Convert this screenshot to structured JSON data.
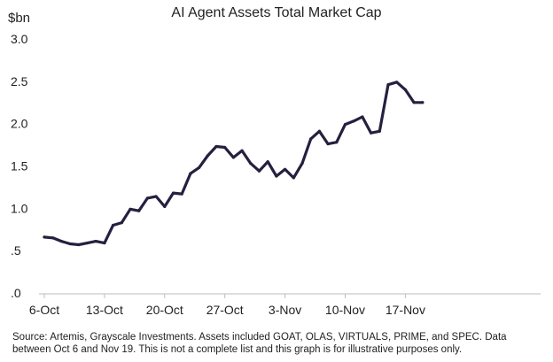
{
  "chart_data": {
    "type": "line",
    "title": "AI Agent Assets Total Market Cap",
    "ylabel": "$bn",
    "xlabel": "",
    "ylim": [
      0,
      3.0
    ],
    "yticks": [
      0,
      0.5,
      1.0,
      1.5,
      2.0,
      2.5,
      3.0
    ],
    "ytick_labels": [
      ".0",
      ".5",
      "1.0",
      "1.5",
      "2.0",
      "2.5",
      "3.0"
    ],
    "xtick_labels": [
      "6-Oct",
      "13-Oct",
      "20-Oct",
      "27-Oct",
      "3-Nov",
      "10-Nov",
      "17-Nov"
    ],
    "xtick_days": [
      0,
      7,
      14,
      21,
      28,
      35,
      42
    ],
    "grid": false,
    "line_color": "#24203f",
    "series": [
      {
        "x": [
          0,
          1,
          2,
          3,
          4,
          5,
          6,
          7,
          8,
          9,
          10,
          11,
          12,
          13,
          14,
          15,
          16,
          17,
          18,
          19,
          20,
          21,
          22,
          23,
          24,
          25,
          26,
          27,
          28,
          29,
          30,
          31,
          32,
          33,
          34,
          35,
          36,
          37,
          38,
          39,
          40,
          41,
          42,
          43,
          44
        ],
        "values": [
          0.66,
          0.65,
          0.61,
          0.58,
          0.57,
          0.59,
          0.61,
          0.59,
          0.8,
          0.83,
          0.99,
          0.97,
          1.12,
          1.14,
          1.02,
          1.18,
          1.17,
          1.41,
          1.48,
          1.62,
          1.73,
          1.72,
          1.6,
          1.68,
          1.53,
          1.44,
          1.55,
          1.38,
          1.46,
          1.36,
          1.53,
          1.82,
          1.91,
          1.76,
          1.78,
          1.99,
          2.03,
          2.08,
          1.89,
          1.91,
          2.46,
          2.49,
          2.4,
          2.25,
          2.25
        ]
      }
    ]
  },
  "source_note": "Source: Artemis, Grayscale Investments. Assets included GOAT, OLAS, VIRTUALS, PRIME, and SPEC. Data between Oct 6 and Nov 19.  This is not a complete list and this graph is for illustrative purposes only."
}
